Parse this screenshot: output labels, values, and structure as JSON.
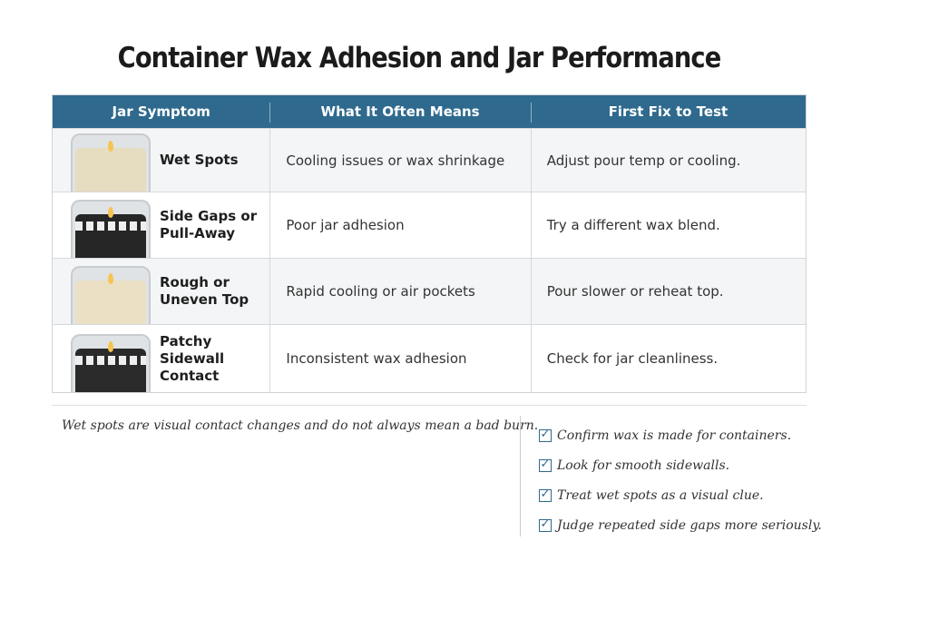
{
  "title": "Container Wax Adhesion and Jar Performance",
  "table": {
    "headers": [
      "Jar Symptom",
      "What It Often Means",
      "First Fix to Test"
    ],
    "rows": [
      {
        "symptom": "Wet Spots",
        "means": "Cooling issues or wax shrinkage",
        "fix": "Adjust pour temp or cooling.",
        "wax_color": "#e6dcc0"
      },
      {
        "symptom": "Side Gaps or Pull-Away",
        "means": "Poor jar adhesion",
        "fix": "Try a different wax blend.",
        "wax_color": "#262626"
      },
      {
        "symptom": "Rough or Uneven Top",
        "means": "Rapid cooling or air pockets",
        "fix": "Pour slower or reheat top.",
        "wax_color": "#ebe0c4"
      },
      {
        "symptom": "Patchy Sidewall Contact",
        "means": "Inconsistent wax adhesion",
        "fix": "Check for jar cleanliness.",
        "wax_color": "#2a2a2a"
      }
    ]
  },
  "note": "Wet spots are visual contact changes and do not always mean a bad burn.",
  "checklist": [
    "Confirm wax is made for containers.",
    "Look for smooth sidewalls.",
    "Treat wet spots as a visual clue.",
    "Judge repeated side gaps more seriously."
  ],
  "colors": {
    "header": "#2f6a8e"
  }
}
